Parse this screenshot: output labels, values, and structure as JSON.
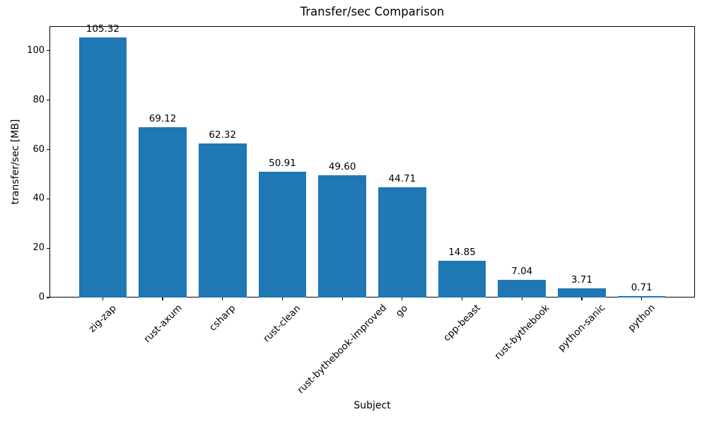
{
  "chart_data": {
    "type": "bar",
    "title": "Transfer/sec Comparison",
    "xlabel": "Subject",
    "ylabel": "transfer/sec [MB]",
    "categories": [
      "zig-zap",
      "rust-axum",
      "csharp",
      "rust-clean",
      "rust-bythebook-improved",
      "go",
      "cpp-beast",
      "rust-bythebook",
      "python-sanic",
      "python"
    ],
    "values": [
      105.32,
      69.12,
      62.32,
      50.91,
      49.6,
      44.71,
      14.85,
      7.04,
      3.71,
      0.71
    ],
    "value_labels": [
      "105.32",
      "69.12",
      "62.32",
      "50.91",
      "49.60",
      "44.71",
      "14.85",
      "7.04",
      "3.71",
      "0.71"
    ],
    "ylim": [
      0,
      110
    ],
    "yticks": [
      0,
      20,
      40,
      60,
      80,
      100
    ],
    "x_tick_rotation_deg": 45,
    "grid": false,
    "legend": null,
    "bar_color": "#1f77b4",
    "axis_color": "#000000",
    "text_color": "#000000",
    "background_color": "#ffffff"
  }
}
